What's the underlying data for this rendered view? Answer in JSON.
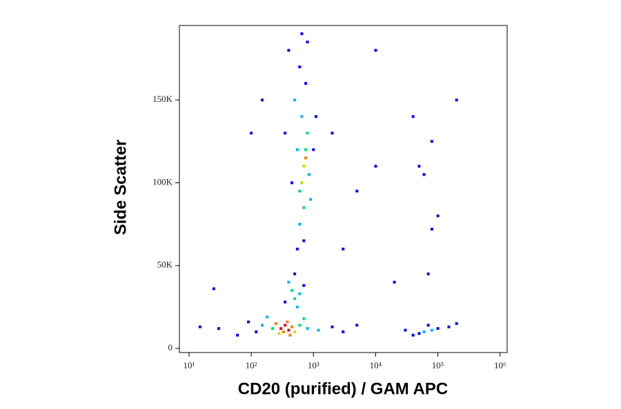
{
  "chart_data": {
    "type": "scatter",
    "xlabel": "CD20 (purified) / GAM APC",
    "ylabel": "Side Scatter",
    "log_x": true,
    "xlim": [
      7,
      1300000
    ],
    "xticks": [
      {
        "value": 10,
        "label": "10¹"
      },
      {
        "value": 100,
        "label": "10²"
      },
      {
        "value": 1000,
        "label": "10³"
      },
      {
        "value": 10000,
        "label": "10⁴"
      },
      {
        "value": 100000,
        "label": "10⁵"
      },
      {
        "value": 1000000,
        "label": "10⁶"
      }
    ],
    "ylim": [
      -2500,
      195000
    ],
    "yticks": [
      0,
      {
        "value": 50000,
        "label": "50K"
      },
      {
        "value": 100000,
        "label": "100K"
      },
      {
        "value": 150000,
        "label": "150K"
      }
    ],
    "x": [
      300,
      350,
      400,
      330,
      450,
      250,
      380,
      280,
      500,
      220,
      600,
      420,
      150,
      120,
      800,
      1200,
      2000,
      3000,
      90,
      60,
      30,
      5000,
      180,
      700,
      500,
      450,
      550,
      400,
      600,
      350,
      700,
      500,
      700,
      650,
      750,
      600,
      800,
      700,
      650,
      550,
      850,
      600,
      700,
      500,
      750,
      450,
      1000,
      600,
      800,
      400,
      900,
      550,
      1100,
      350,
      650,
      750,
      60000,
      80000,
      50000,
      100000,
      40000,
      70000,
      150000,
      30000,
      200000,
      40000,
      50000,
      60000,
      200000,
      80000,
      100000,
      5000,
      10000,
      3000,
      20000,
      2000,
      150,
      100,
      70000,
      80000,
      15,
      25,
      10000
    ],
    "values": [
      12000,
      14000,
      11000,
      10000,
      13000,
      15000,
      16000,
      9000,
      10000,
      12000,
      14000,
      8000,
      14000,
      10000,
      12000,
      11000,
      13000,
      10000,
      16000,
      8000,
      12000,
      14000,
      19000,
      18000,
      30000,
      35000,
      25000,
      40000,
      33000,
      28000,
      38000,
      45000,
      110000,
      100000,
      120000,
      95000,
      130000,
      85000,
      140000,
      120000,
      105000,
      75000,
      65000,
      150000,
      160000,
      100000,
      120000,
      170000,
      185000,
      180000,
      90000,
      60000,
      140000,
      130000,
      190000,
      115000,
      10000,
      11000,
      9000,
      12000,
      8000,
      14000,
      13000,
      11000,
      15000,
      140000,
      110000,
      105000,
      150000,
      125000,
      80000,
      95000,
      110000,
      60000,
      40000,
      130000,
      150000,
      130000,
      45000,
      72000,
      13000,
      36000,
      180000
    ],
    "colors": [
      "#e00000",
      "#e00000",
      "#e00000",
      "#ff8000",
      "#ff8000",
      "#ff8000",
      "#ff8000",
      "#c8e000",
      "#c8e000",
      "#00e070",
      "#00e070",
      "#ff8000",
      "#00b4ff",
      "#0000ff",
      "#00b4ff",
      "#00b4ff",
      "#0000ff",
      "#0000ff",
      "#0000ff",
      "#0000ff",
      "#0000ff",
      "#0000ff",
      "#00b4ff",
      "#00e070",
      "#00e070",
      "#00e070",
      "#00b4ff",
      "#00b4ff",
      "#00b4ff",
      "#0000ff",
      "#0000ff",
      "#0000ff",
      "#c8e000",
      "#c8e000",
      "#00e070",
      "#00e070",
      "#00e070",
      "#00e070",
      "#00b4ff",
      "#00b4ff",
      "#00b4ff",
      "#00b4ff",
      "#0000ff",
      "#00b4ff",
      "#0000ff",
      "#0000ff",
      "#0000ff",
      "#0000ff",
      "#0000ff",
      "#0000ff",
      "#00b4ff",
      "#0000ff",
      "#0000ff",
      "#0000ff",
      "#0000ff",
      "#ff8000",
      "#00b4ff",
      "#00b4ff",
      "#0000ff",
      "#0000ff",
      "#0000ff",
      "#0000ff",
      "#0000ff",
      "#0000ff",
      "#0000ff",
      "#0000ff",
      "#0000ff",
      "#0000ff",
      "#0000ff",
      "#0000ff",
      "#0000ff",
      "#0000ff",
      "#0000ff",
      "#0000ff",
      "#0000ff",
      "#0000ff",
      "#0000ff",
      "#0000ff",
      "#0000ff",
      "#0000ff",
      "#0000ff",
      "#0000ff",
      "#0000ff"
    ]
  }
}
